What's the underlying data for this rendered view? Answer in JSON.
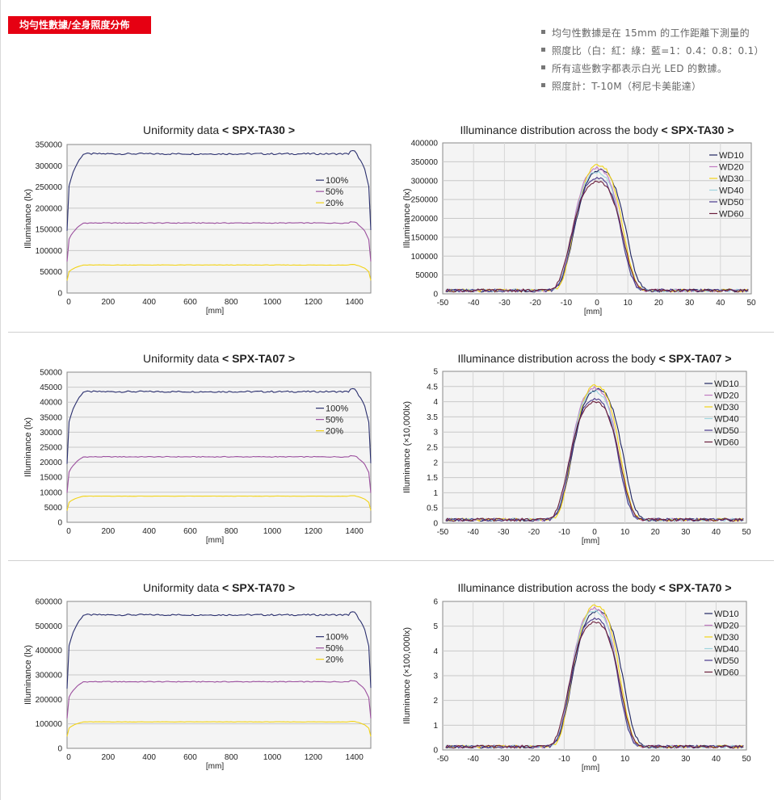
{
  "header": {
    "tag_label": "均勻性數據/全身照度分佈",
    "notes": [
      "均勻性數據是在 15mm 的工作距離下測量的",
      "照度比（白：紅：綠：藍=1：0.4：0.8：0.1）",
      "所有這些數字都表示白光 LED 的數據。",
      "照度計：T-10M（柯尼卡美能達）"
    ]
  },
  "colors": {
    "s100": "#2a2f6e",
    "s50": "#9b4f9e",
    "s20": "#f2d318",
    "WD10": "#1f2560",
    "WD20": "#c27bc2",
    "WD30": "#f2d318",
    "WD40": "#9fd4de",
    "WD50": "#4a3a8c",
    "WD60": "#6b1f3c"
  },
  "chart_data": [
    {
      "type": "line",
      "title": "Uniformity data",
      "model": "< SPX-TA30 >",
      "xlabel": "[mm]",
      "ylabel": "Illuminance (lx)",
      "xlim": [
        0,
        1480
      ],
      "ylim": [
        0,
        350000
      ],
      "xticks": [
        0,
        200,
        400,
        600,
        800,
        1000,
        1200,
        1400
      ],
      "yticks": [
        0,
        50000,
        100000,
        150000,
        200000,
        250000,
        300000,
        350000
      ],
      "series": [
        {
          "name": "100%",
          "plateau": 328000
        },
        {
          "name": "50%",
          "plateau": 165000
        },
        {
          "name": "20%",
          "plateau": 66000
        }
      ]
    },
    {
      "type": "line",
      "title": "Illuminance distribution across the body",
      "model": "< SPX-TA30 >",
      "xlabel": "[mm]",
      "ylabel": "Illuminance (lx)",
      "xlim": [
        -50,
        50
      ],
      "ylim": [
        0,
        400000
      ],
      "xticks": [
        -50,
        -40,
        -30,
        -20,
        -10,
        0,
        10,
        20,
        30,
        40,
        50
      ],
      "yticks": [
        0,
        50000,
        100000,
        150000,
        200000,
        250000,
        300000,
        350000,
        400000
      ],
      "series": [
        {
          "name": "WD10",
          "peak": 320000,
          "center": 1,
          "halfwidth": 10
        },
        {
          "name": "WD20",
          "peak": 325000,
          "center": 0,
          "halfwidth": 9.5
        },
        {
          "name": "WD30",
          "peak": 332000,
          "center": 0.5,
          "halfwidth": 9.5
        },
        {
          "name": "WD40",
          "peak": 315000,
          "center": 0,
          "halfwidth": 9.5
        },
        {
          "name": "WD50",
          "peak": 300000,
          "center": 0,
          "halfwidth": 9.5
        },
        {
          "name": "WD60",
          "peak": 290000,
          "center": 0,
          "halfwidth": 10
        }
      ]
    },
    {
      "type": "line",
      "title": "Uniformity data",
      "model": "< SPX-TA07 >",
      "xlabel": "[mm]",
      "ylabel": "Illuminance (lx)",
      "xlim": [
        0,
        1480
      ],
      "ylim": [
        0,
        50000
      ],
      "xticks": [
        0,
        200,
        400,
        600,
        800,
        1000,
        1200,
        1400
      ],
      "yticks": [
        0,
        5000,
        10000,
        15000,
        20000,
        25000,
        30000,
        35000,
        40000,
        45000,
        50000
      ],
      "series": [
        {
          "name": "100%",
          "plateau": 43500
        },
        {
          "name": "50%",
          "plateau": 21800
        },
        {
          "name": "20%",
          "plateau": 8700
        }
      ]
    },
    {
      "type": "line",
      "title": "Illuminance distribution across the body",
      "model": "< SPX-TA07 >",
      "xlabel": "[mm]",
      "ylabel": "Illuminance (×10,000lx)",
      "xlim": [
        -50,
        50
      ],
      "ylim": [
        0,
        5
      ],
      "xticks": [
        -50,
        -40,
        -30,
        -20,
        -10,
        0,
        10,
        20,
        30,
        40,
        50
      ],
      "yticks": [
        0,
        0.5,
        1,
        1.5,
        2,
        2.5,
        3,
        3.5,
        4,
        4.5,
        5
      ],
      "series": [
        {
          "name": "WD10",
          "peak": 4.3,
          "center": 1,
          "halfwidth": 10
        },
        {
          "name": "WD20",
          "peak": 4.35,
          "center": 0,
          "halfwidth": 9.5
        },
        {
          "name": "WD30",
          "peak": 4.42,
          "center": 0.5,
          "halfwidth": 9.5
        },
        {
          "name": "WD40",
          "peak": 4.25,
          "center": 0,
          "halfwidth": 9.5
        },
        {
          "name": "WD50",
          "peak": 4.0,
          "center": 0,
          "halfwidth": 9.5
        },
        {
          "name": "WD60",
          "peak": 3.9,
          "center": 0,
          "halfwidth": 10
        }
      ]
    },
    {
      "type": "line",
      "title": "Uniformity data",
      "model": "< SPX-TA70 >",
      "xlabel": "[mm]",
      "ylabel": "Illuminance (lx)",
      "xlim": [
        0,
        1480
      ],
      "ylim": [
        0,
        600000
      ],
      "xticks": [
        0,
        200,
        400,
        600,
        800,
        1000,
        1200,
        1400
      ],
      "yticks": [
        0,
        100000,
        200000,
        300000,
        400000,
        500000,
        600000
      ],
      "series": [
        {
          "name": "100%",
          "plateau": 545000
        },
        {
          "name": "50%",
          "plateau": 272000
        },
        {
          "name": "20%",
          "plateau": 108000
        }
      ]
    },
    {
      "type": "line",
      "title": "Illuminance distribution across the body",
      "model": "< SPX-TA70 >",
      "xlabel": "[mm]",
      "ylabel": "Illuminance (×100,000lx)",
      "xlim": [
        -50,
        50
      ],
      "ylim": [
        0,
        6
      ],
      "xticks": [
        -50,
        -40,
        -30,
        -20,
        -10,
        0,
        10,
        20,
        30,
        40,
        50
      ],
      "yticks": [
        0,
        1,
        2,
        3,
        4,
        5,
        6
      ],
      "series": [
        {
          "name": "WD10",
          "peak": 5.5,
          "center": 1,
          "halfwidth": 10
        },
        {
          "name": "WD20",
          "peak": 5.6,
          "center": 0,
          "halfwidth": 9.5
        },
        {
          "name": "WD30",
          "peak": 5.7,
          "center": 0.5,
          "halfwidth": 9.5
        },
        {
          "name": "WD40",
          "peak": 5.5,
          "center": 0,
          "halfwidth": 9.5
        },
        {
          "name": "WD50",
          "peak": 5.2,
          "center": 0,
          "halfwidth": 9.5
        },
        {
          "name": "WD60",
          "peak": 5.05,
          "center": 0,
          "halfwidth": 10
        }
      ]
    }
  ]
}
